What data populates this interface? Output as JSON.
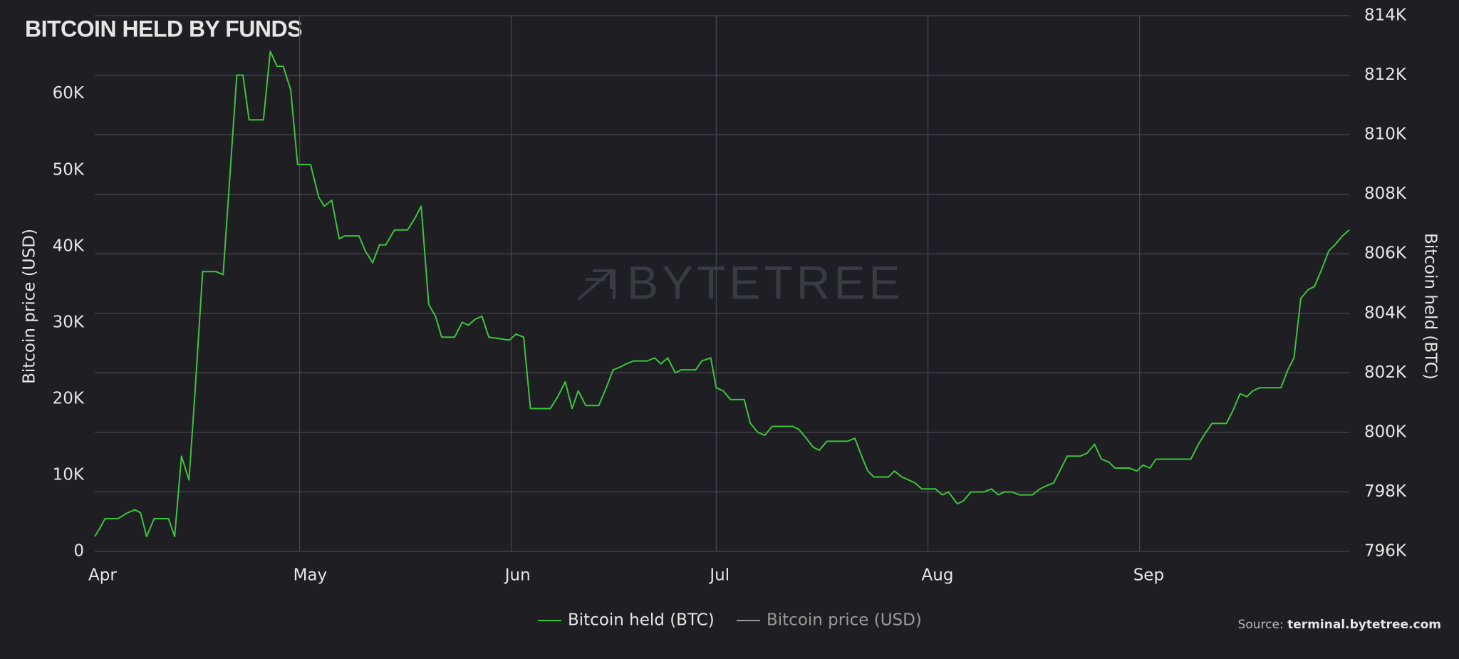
{
  "chart_data": {
    "type": "line",
    "title": "BITCOIN HELD BY FUNDS",
    "watermark": "BYTETREE",
    "source_label": "Source:",
    "source": "terminal.bytetree.com",
    "y_label": "Bitcoin price (USD)",
    "y2_label": "Bitcoin held (BTC)",
    "grid": "y2",
    "legend": "bottom",
    "x": [
      0,
      0.8,
      1.5,
      3.4,
      4.8,
      5.9,
      6.7,
      7.6,
      8.7,
      10.8,
      11.7,
      12.7,
      13.8,
      14.7,
      15.8,
      17.8,
      18.8,
      20.8,
      21.7,
      22.6,
      24.7,
      25.7,
      26.7,
      27.6,
      28.7,
      29.7,
      31.6,
      32.8,
      33.6,
      34.7,
      35.8,
      36.6,
      38.7,
      39.6,
      40.7,
      41.7,
      42.6,
      43.9,
      45.8,
      46.9,
      47.8,
      48.9,
      49.9,
      50.8,
      52.7,
      53.8,
      54.7,
      55.7,
      56.7,
      57.7,
      60.7,
      61.7,
      62.8,
      63.8,
      64.5,
      66.7,
      67.8,
      68.9,
      69.9,
      70.8,
      71.9,
      73.8,
      74.9,
      75.9,
      77,
      77.8,
      78.9,
      80.9,
      82,
      82.9,
      83.9,
      85,
      85.9,
      88,
      88.9,
      90.2,
      91,
      92,
      93.1,
      95.1,
      96,
      97.1,
      98.1,
      99.2,
      102.2,
      103.1,
      104.2,
      105.2,
      106.1,
      107.2,
      109.2,
      110.2,
      111.3,
      112.3,
      113.2,
      114.1,
      116.2,
      117.1,
      118.2,
      119.2,
      120.1,
      121.1,
      123.1,
      124.1,
      125,
      126.3,
      127.2,
      128.3,
      130.2,
      131.3,
      132.3,
      133.2,
      134.3,
      135.4,
      137.3,
      138.4,
      139.3,
      140.4,
      141.3,
      142.4,
      144.3,
      145.3,
      146.4,
      147.4,
      148.5,
      149.4,
      151.5,
      152.6,
      153.5,
      154.5,
      155.4,
      158.4,
      159.5,
      160.5,
      161.6,
      162.7,
      163.6,
      165.7,
      166.6,
      167.7,
      168.7,
      169.6,
      170.6,
      172.6,
      173.7,
      174.7,
      175.6,
      176.6,
      177.7,
      178.6,
      179.7,
      180.7,
      181.6,
      182.7,
      183.7
    ],
    "xlim": [
      0,
      183.7
    ],
    "xticks": [
      {
        "value": 0,
        "label": "Apr"
      },
      {
        "value": 30,
        "label": "May"
      },
      {
        "value": 61,
        "label": "Jun"
      },
      {
        "value": 91,
        "label": "Jul"
      },
      {
        "value": 122,
        "label": "Aug"
      },
      {
        "value": 153,
        "label": "Sep"
      }
    ],
    "ylim": [
      0,
      70250
    ],
    "yticks": [
      0,
      {
        "value": 10000,
        "label": "10K"
      },
      {
        "value": 20000,
        "label": "20K"
      },
      {
        "value": 30000,
        "label": "30K"
      },
      {
        "value": 40000,
        "label": "40K"
      },
      {
        "value": 50000,
        "label": "50K"
      },
      {
        "value": 60000,
        "label": "60K"
      }
    ],
    "y2lim": [
      796000,
      814000
    ],
    "y2ticks": [
      {
        "value": 796000,
        "label": "796K"
      },
      {
        "value": 798000,
        "label": "798K"
      },
      {
        "value": 800000,
        "label": "800K"
      },
      {
        "value": 802000,
        "label": "802K"
      },
      {
        "value": 804000,
        "label": "804K"
      },
      {
        "value": 806000,
        "label": "806K"
      },
      {
        "value": 808000,
        "label": "808K"
      },
      {
        "value": 810000,
        "label": "810K"
      },
      {
        "value": 812000,
        "label": "812K"
      },
      {
        "value": 814000,
        "label": "814K"
      }
    ],
    "series": [
      {
        "name": "Bitcoin held (BTC)",
        "color": "#3cc43c",
        "axis": "y2",
        "visible": true,
        "values": [
          796500,
          796800,
          797100,
          797100,
          797300,
          797400,
          797300,
          796500,
          797100,
          797100,
          796500,
          799200,
          798400,
          801400,
          805400,
          805400,
          805300,
          812000,
          812000,
          810500,
          810500,
          812800,
          812300,
          812300,
          811500,
          809000,
          809000,
          807900,
          807600,
          807800,
          806500,
          806600,
          806600,
          806100,
          805700,
          806300,
          806300,
          806800,
          806800,
          807200,
          807600,
          804300,
          803900,
          803200,
          803200,
          803700,
          803600,
          803800,
          803900,
          803200,
          803100,
          803300,
          803200,
          800800,
          800800,
          800800,
          801200,
          801700,
          800800,
          801400,
          800900,
          800900,
          801500,
          802100,
          802200,
          802300,
          802400,
          802400,
          802500,
          802300,
          802500,
          802000,
          802100,
          802100,
          802400,
          802500,
          801500,
          801400,
          801100,
          801100,
          800300,
          800000,
          799900,
          800200,
          800200,
          800100,
          799800,
          799500,
          799400,
          799700,
          799700,
          799700,
          799800,
          799200,
          798700,
          798500,
          798500,
          798700,
          798500,
          798400,
          798300,
          798100,
          798100,
          797900,
          798000,
          797600,
          797700,
          798000,
          798000,
          798100,
          797900,
          798000,
          798000,
          797900,
          797900,
          798100,
          798200,
          798300,
          798700,
          799200,
          799200,
          799300,
          799600,
          799100,
          799000,
          798800,
          798800,
          798700,
          798900,
          798800,
          799100,
          799100,
          799100,
          799100,
          799600,
          800000,
          800300,
          800300,
          800700,
          801300,
          801200,
          801400,
          801500,
          801500,
          801500,
          802100,
          802500,
          804500,
          804800,
          804900,
          805500,
          806100,
          806300,
          806600,
          806800
        ]
      },
      {
        "name": "Bitcoin price (USD)",
        "color": "#9a9a9a",
        "axis": "y",
        "visible": false
      }
    ]
  }
}
